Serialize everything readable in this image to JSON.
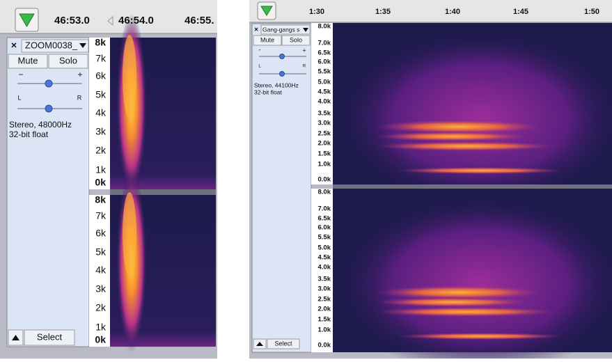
{
  "left_panel": {
    "ruler": [
      "46:53.0",
      "46:54.0",
      "46:55."
    ],
    "track": {
      "name": "ZOOM0038_",
      "mute": "Mute",
      "solo": "Solo",
      "gain_min": "−",
      "gain_max": "+",
      "pan_left": "L",
      "pan_right": "R",
      "format": "Stereo, 48000Hz",
      "sample_format": "32-bit float",
      "select": "Select"
    },
    "channels": [
      {
        "axis_labels": [
          "8k",
          "7k",
          "6k",
          "5k",
          "4k",
          "3k",
          "2k",
          "1k",
          "0k"
        ]
      },
      {
        "axis_labels": [
          "8k",
          "7k",
          "6k",
          "5k",
          "4k",
          "3k",
          "2k",
          "1k",
          "0k"
        ]
      }
    ]
  },
  "right_panel": {
    "ruler": [
      "1:30",
      "1:35",
      "1:40",
      "1:45",
      "1:50"
    ],
    "track": {
      "name": "Gang-gangs s",
      "mute": "Mute",
      "solo": "Solo",
      "gain_min": "-",
      "gain_max": "+",
      "pan_left": "L",
      "pan_right": "R",
      "format": "Stereo, 44100Hz",
      "sample_format": "32-bit float",
      "select": "Select"
    },
    "channels": [
      {
        "axis_labels": [
          "8.0k",
          "7.0k",
          "6.5k",
          "6.0k",
          "5.5k",
          "5.0k",
          "4.5k",
          "4.0k",
          "3.5k",
          "3.0k",
          "2.5k",
          "2.0k",
          "1.5k",
          "1.0k",
          "0.0k"
        ]
      },
      {
        "axis_labels": [
          "8.0k",
          "7.0k",
          "6.5k",
          "6.0k",
          "5.5k",
          "5.0k",
          "4.5k",
          "4.0k",
          "3.5k",
          "3.0k",
          "2.5k",
          "2.0k",
          "1.5k",
          "1.0k",
          "0.0k"
        ]
      }
    ]
  }
}
